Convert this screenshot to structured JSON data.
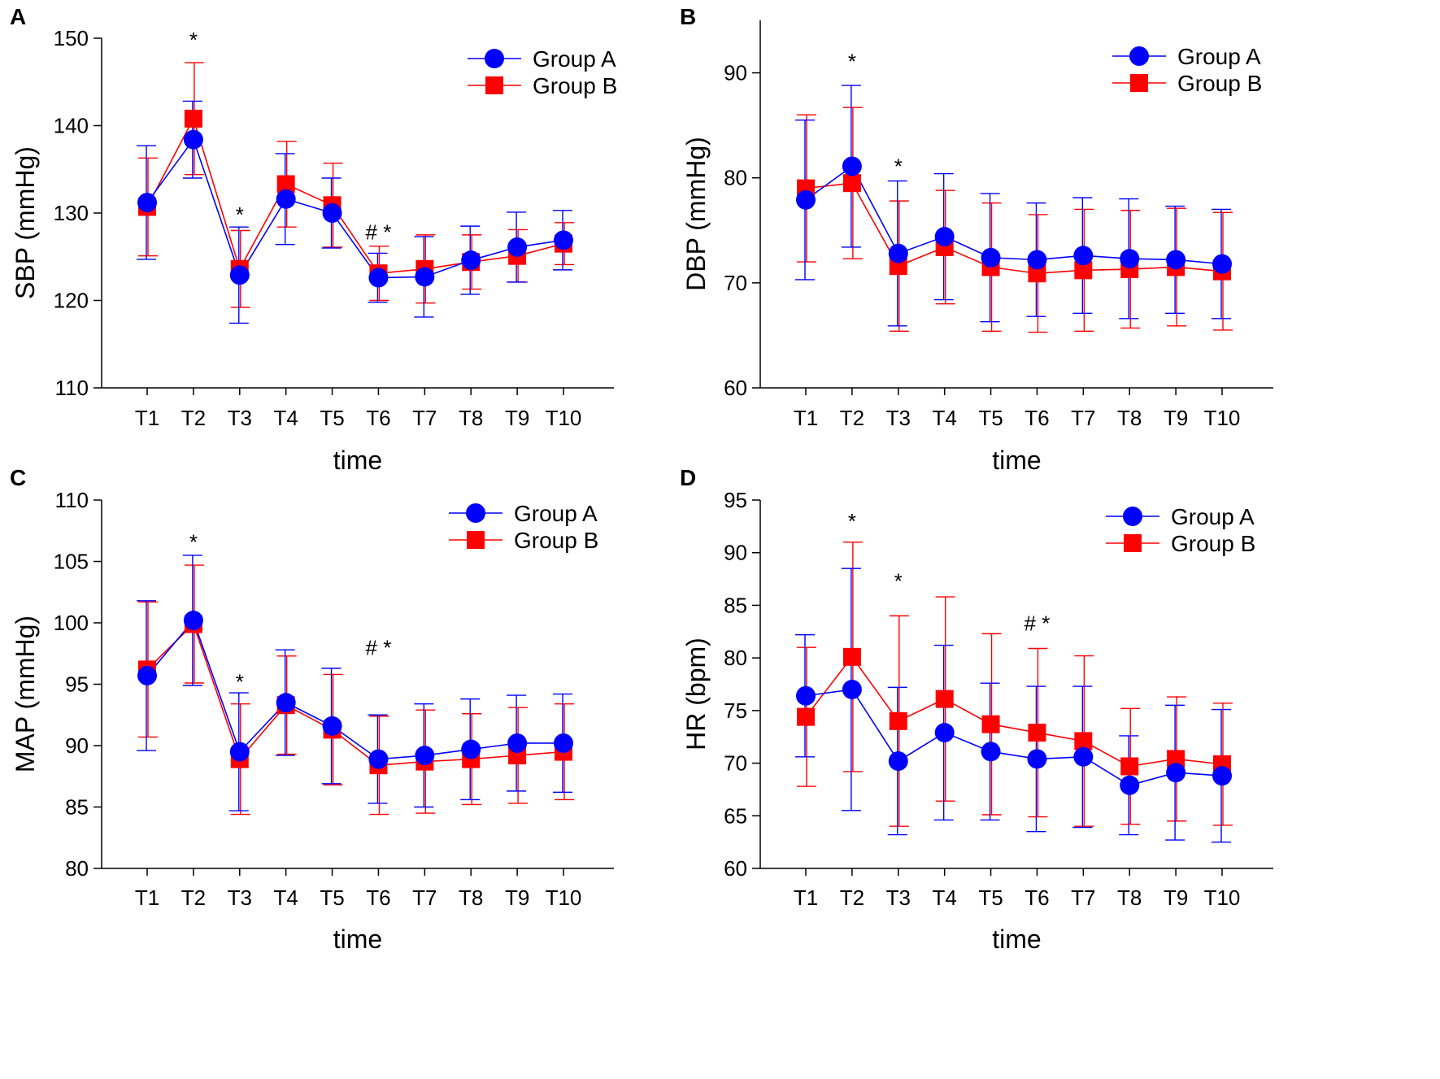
{
  "chart_data": [
    {
      "type": "line",
      "panel": "A",
      "xlabel": "time",
      "ylabel": "SBP (mmHg)",
      "ylim": [
        110,
        150
      ],
      "yticks": [
        110,
        120,
        130,
        140,
        150
      ],
      "categories": [
        "T1",
        "T2",
        "T3",
        "T4",
        "T5",
        "T6",
        "T7",
        "T8",
        "T9",
        "T10"
      ],
      "legend": "top-right",
      "series": [
        {
          "name": "Group A",
          "color": "#0000ff",
          "marker": "circle",
          "values": [
            131.2,
            138.4,
            122.9,
            131.6,
            130.0,
            122.6,
            122.7,
            124.6,
            126.1,
            126.9
          ],
          "errors": [
            6.5,
            4.4,
            5.5,
            5.2,
            4.0,
            2.8,
            4.6,
            3.9,
            4.0,
            3.4
          ]
        },
        {
          "name": "Group B",
          "color": "#ff0000",
          "marker": "square",
          "values": [
            130.7,
            140.8,
            123.6,
            133.3,
            130.9,
            123.1,
            123.6,
            124.4,
            125.1,
            126.5
          ],
          "errors": [
            5.6,
            6.4,
            4.4,
            4.9,
            4.8,
            3.1,
            3.9,
            3.1,
            3.0,
            2.4
          ]
        }
      ],
      "annotations": [
        {
          "category": "T2",
          "text": "*",
          "value": 149.0
        },
        {
          "category": "T3",
          "text": "*",
          "value": 129.0
        },
        {
          "category": "T6",
          "text": "# *",
          "value": 127.0
        }
      ]
    },
    {
      "type": "line",
      "panel": "B",
      "xlabel": "time",
      "ylabel": "DBP (mmHg)",
      "ylim": [
        60,
        95
      ],
      "yticks": [
        60,
        70,
        80,
        90
      ],
      "categories": [
        "T1",
        "T2",
        "T3",
        "T4",
        "T5",
        "T6",
        "T7",
        "T8",
        "T9",
        "T10"
      ],
      "legend": "top-right",
      "series": [
        {
          "name": "Group A",
          "color": "#0000ff",
          "marker": "circle",
          "values": [
            77.9,
            81.1,
            72.8,
            74.4,
            72.4,
            72.2,
            72.6,
            72.3,
            72.2,
            71.8
          ],
          "errors": [
            7.6,
            7.7,
            6.9,
            6.0,
            6.1,
            5.4,
            5.5,
            5.7,
            5.1,
            5.2
          ]
        },
        {
          "name": "Group B",
          "color": "#ff0000",
          "marker": "square",
          "values": [
            79.0,
            79.5,
            71.6,
            73.4,
            71.5,
            70.9,
            71.2,
            71.3,
            71.5,
            71.1
          ],
          "errors": [
            7.0,
            7.2,
            6.2,
            5.4,
            6.1,
            5.6,
            5.8,
            5.6,
            5.6,
            5.6
          ]
        }
      ],
      "annotations": [
        {
          "category": "T2",
          "text": "*",
          "value": 90.4
        },
        {
          "category": "T3",
          "text": "*",
          "value": 80.4
        }
      ]
    },
    {
      "type": "line",
      "panel": "C",
      "xlabel": "time",
      "ylabel": "MAP (mmHg)",
      "ylim": [
        80,
        110
      ],
      "yticks": [
        80,
        85,
        90,
        95,
        100,
        105,
        110
      ],
      "categories": [
        "T1",
        "T2",
        "T3",
        "T4",
        "T5",
        "T6",
        "T7",
        "T8",
        "T9",
        "T10"
      ],
      "legend": "top-right",
      "series": [
        {
          "name": "Group A",
          "color": "#0000ff",
          "marker": "circle",
          "values": [
            95.7,
            100.2,
            89.5,
            93.5,
            91.6,
            88.9,
            89.2,
            89.7,
            90.2,
            90.2
          ],
          "errors": [
            6.1,
            5.3,
            4.8,
            4.3,
            4.7,
            3.6,
            4.2,
            4.1,
            3.9,
            4.0
          ]
        },
        {
          "name": "Group B",
          "color": "#ff0000",
          "marker": "square",
          "values": [
            96.2,
            99.9,
            88.9,
            93.3,
            91.3,
            88.4,
            88.7,
            88.9,
            89.2,
            89.5
          ],
          "errors": [
            5.5,
            4.8,
            4.5,
            4.0,
            4.5,
            4.0,
            4.2,
            3.7,
            3.9,
            3.9
          ]
        }
      ],
      "annotations": [
        {
          "category": "T2",
          "text": "*",
          "value": 106.0
        },
        {
          "category": "T3",
          "text": "*",
          "value": 94.6
        },
        {
          "category": "T6",
          "text": "# *",
          "value": 97.4
        }
      ]
    },
    {
      "type": "line",
      "panel": "D",
      "xlabel": "time",
      "ylabel": "HR (bpm)",
      "ylim": [
        60,
        95
      ],
      "yticks": [
        60,
        65,
        70,
        75,
        80,
        85,
        90,
        95
      ],
      "categories": [
        "T1",
        "T2",
        "T3",
        "T4",
        "T5",
        "T6",
        "T7",
        "T8",
        "T9",
        "T10"
      ],
      "legend": "top-right",
      "series": [
        {
          "name": "Group A",
          "color": "#0000ff",
          "marker": "circle",
          "values": [
            76.4,
            77.0,
            70.2,
            72.9,
            71.1,
            70.4,
            70.6,
            67.9,
            69.1,
            68.8
          ],
          "errors": [
            5.8,
            11.5,
            7.0,
            8.3,
            6.5,
            6.9,
            6.7,
            4.7,
            6.4,
            6.3
          ]
        },
        {
          "name": "Group B",
          "color": "#ff0000",
          "marker": "square",
          "values": [
            74.4,
            80.1,
            74.0,
            76.1,
            73.7,
            72.9,
            72.1,
            69.7,
            70.4,
            69.9
          ],
          "errors": [
            6.6,
            10.9,
            10.0,
            9.7,
            8.6,
            8.0,
            8.1,
            5.5,
            5.9,
            5.8
          ]
        }
      ],
      "annotations": [
        {
          "category": "T2",
          "text": "*",
          "value": 92.3
        },
        {
          "category": "T3",
          "text": "*",
          "value": 86.6
        },
        {
          "category": "T6",
          "text": "# *",
          "value": 82.6
        }
      ]
    }
  ]
}
